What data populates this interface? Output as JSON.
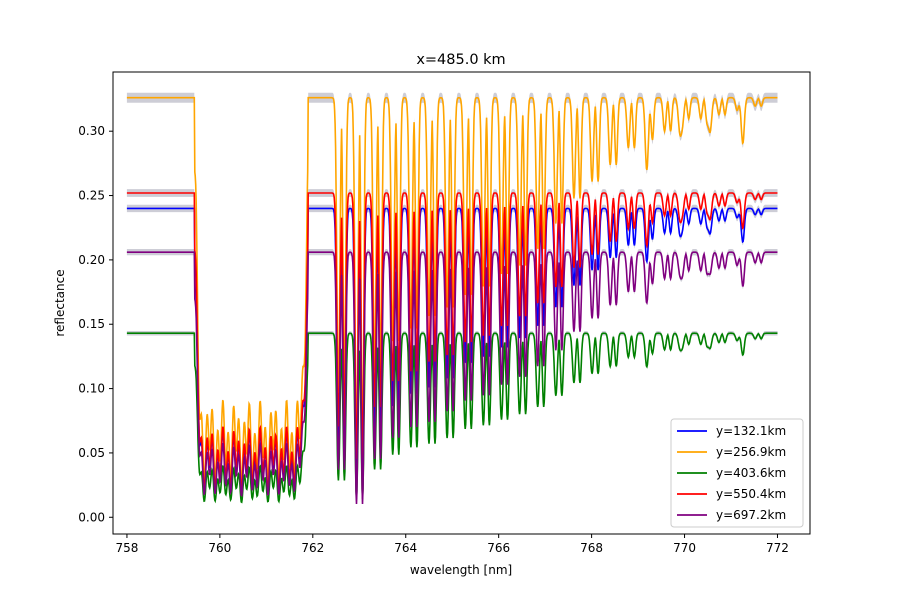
{
  "chart_data": {
    "type": "line",
    "title": "x=485.0 km",
    "xlabel": "wavelength [nm]",
    "ylabel": "reflectance",
    "xlim": [
      757.7,
      772.7
    ],
    "ylim": [
      -0.013,
      0.346
    ],
    "xticks": [
      758,
      760,
      762,
      764,
      766,
      768,
      770,
      772
    ],
    "xtick_labels": [
      "758",
      "760",
      "762",
      "764",
      "766",
      "768",
      "770",
      "772"
    ],
    "yticks": [
      0.0,
      0.05,
      0.1,
      0.15,
      0.2,
      0.25,
      0.3
    ],
    "ytick_labels": [
      "0.00",
      "0.05",
      "0.10",
      "0.15",
      "0.20",
      "0.25",
      "0.30"
    ],
    "grid": false,
    "legend_position": "bottom-right",
    "uncertainty_band_color": "#c8c8d2",
    "series": [
      {
        "name": "y=132.1km",
        "color": "#0000ff",
        "continuum": 0.24,
        "dips": [
          0.78,
          0.88,
          0.72,
          0.64,
          0.6,
          0.58,
          0.55,
          0.5,
          0.48,
          0.45,
          0.42,
          0.38,
          0.32,
          0.25,
          0.2,
          0.16,
          0.12,
          0.1,
          0.08,
          0.05,
          0.05,
          0.04,
          0.03,
          0.02
        ]
      },
      {
        "name": "y=256.9km",
        "color": "#ffa500",
        "continuum": 0.326,
        "dips": [
          0.7,
          0.85,
          0.65,
          0.58,
          0.55,
          0.52,
          0.5,
          0.47,
          0.45,
          0.42,
          0.4,
          0.36,
          0.3,
          0.24,
          0.2,
          0.16,
          0.12,
          0.1,
          0.08,
          0.05,
          0.05,
          0.04,
          0.03,
          0.02
        ]
      },
      {
        "name": "y=403.6km",
        "color": "#008000",
        "continuum": 0.143,
        "dips": [
          0.8,
          0.9,
          0.74,
          0.66,
          0.62,
          0.6,
          0.57,
          0.52,
          0.5,
          0.47,
          0.44,
          0.4,
          0.34,
          0.27,
          0.22,
          0.18,
          0.13,
          0.11,
          0.09,
          0.06,
          0.06,
          0.05,
          0.04,
          0.03
        ]
      },
      {
        "name": "y=550.4km",
        "color": "#ff0000",
        "continuum": 0.252,
        "dips": [
          0.72,
          0.82,
          0.66,
          0.58,
          0.55,
          0.52,
          0.5,
          0.46,
          0.44,
          0.41,
          0.38,
          0.34,
          0.29,
          0.23,
          0.19,
          0.15,
          0.11,
          0.09,
          0.07,
          0.05,
          0.05,
          0.04,
          0.03,
          0.02
        ]
      },
      {
        "name": "y=697.2km",
        "color": "#800080",
        "continuum": 0.206,
        "dips": [
          0.82,
          0.95,
          0.78,
          0.7,
          0.66,
          0.64,
          0.6,
          0.56,
          0.54,
          0.5,
          0.47,
          0.43,
          0.37,
          0.3,
          0.25,
          0.2,
          0.15,
          0.12,
          0.1,
          0.07,
          0.07,
          0.06,
          0.05,
          0.04
        ]
      }
    ]
  }
}
